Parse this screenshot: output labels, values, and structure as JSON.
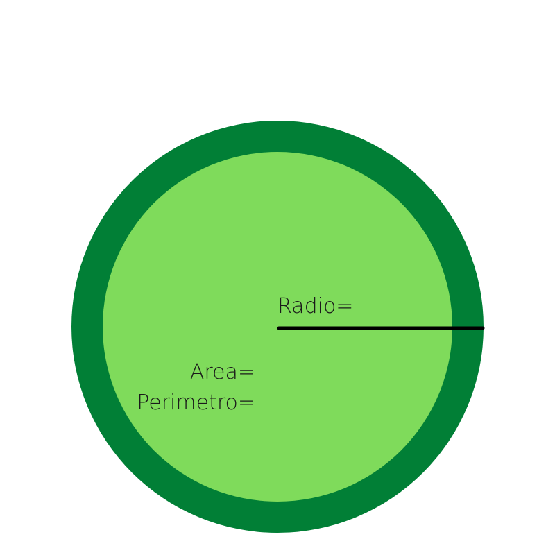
{
  "colors": {
    "outer_ring": "#017f36",
    "inner_disc": "#7fdb5b",
    "radius_line": "#000000",
    "text": "#1a1a1a",
    "background": "#ffffff"
  },
  "labels": {
    "radio": "Radio=",
    "area": "Area=",
    "perimetro": "Perimetro="
  }
}
